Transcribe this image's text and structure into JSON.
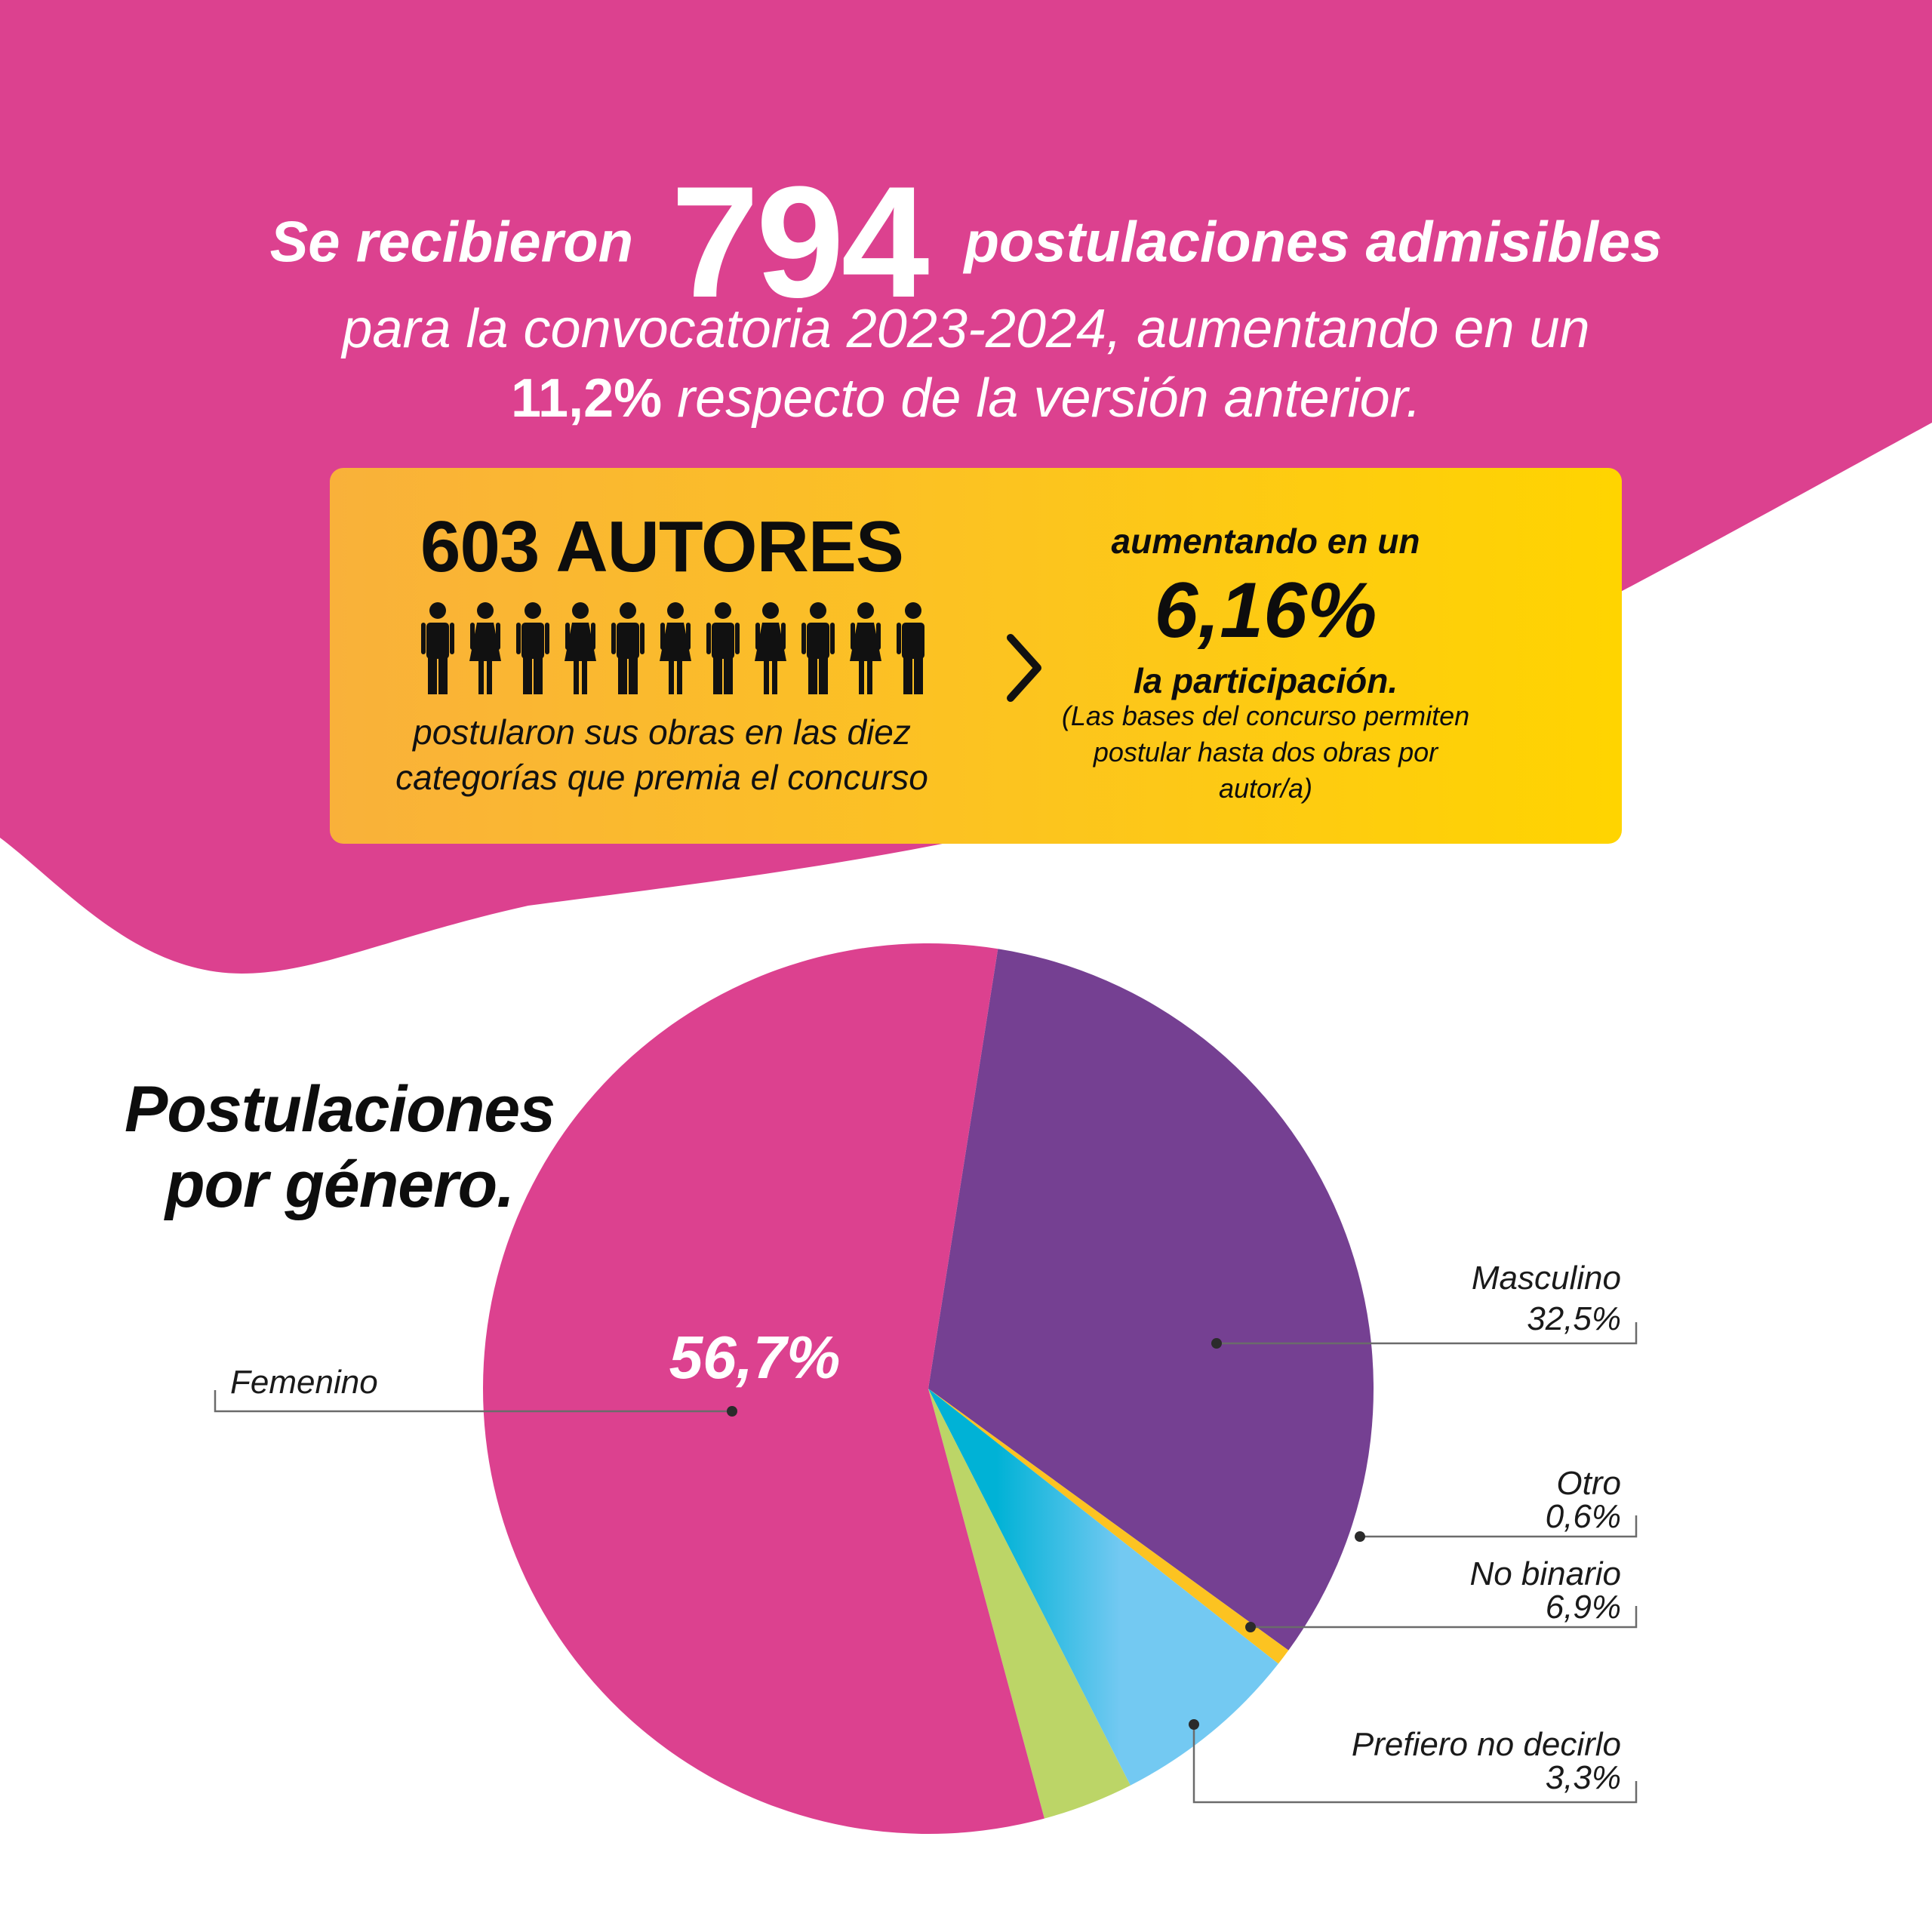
{
  "header": {
    "prefix": "Se recibieron",
    "count": "794",
    "suffix": "postulaciones admisibles",
    "line2": "para la convocatoria 2023-2024, aumentando en un",
    "line3_bold": "11,2%",
    "line3_rest": " respecto de la versión anterior."
  },
  "authors": {
    "title": "603 AUTORES",
    "people_icons": 11,
    "desc_line1": "postularon sus obras en las diez",
    "desc_line2": "categorías que premia el concurso",
    "increase_label": "aumentando en un",
    "increase_value": "6,16%",
    "increase_after": "la participación.",
    "note_line1": "(Las bases del concurso permiten",
    "note_line2": "postular hasta dos obras por autor/a)"
  },
  "chart_title": {
    "line1": "Postulaciones",
    "line2": "por género."
  },
  "colors": {
    "magenta": "#dc418f",
    "purple": "#754092",
    "yellow": "#fcc321",
    "light_blue": "#73c9f2",
    "cyan": "#00b2d6",
    "green": "#bcd567"
  },
  "chart_data": {
    "type": "pie",
    "slices": [
      {
        "label": "Masculino",
        "value": 32.5,
        "display": "32,5%",
        "color": "#754092"
      },
      {
        "label": "Otro",
        "value": 0.6,
        "display": "0,6%",
        "color": "#fcc321"
      },
      {
        "label": "No binario",
        "value": 6.9,
        "display": "6,9%",
        "color": "#73c9f2"
      },
      {
        "label": "Prefiero no decirlo",
        "value": 3.3,
        "display": "3,3%",
        "color": "#bcd567"
      },
      {
        "label": "Femenino",
        "value": 56.7,
        "display": "56,7%",
        "color": "#dc418f"
      }
    ]
  }
}
